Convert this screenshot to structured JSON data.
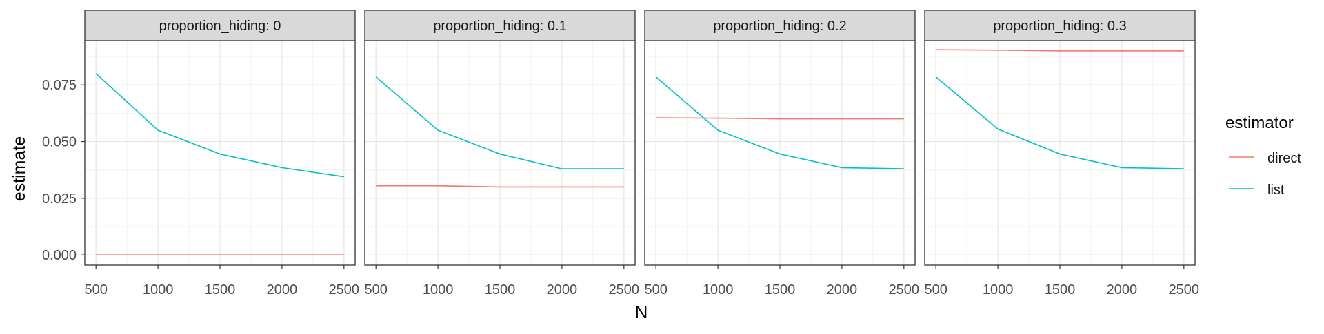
{
  "chart_data": {
    "type": "line",
    "xlabel": "N",
    "ylabel": "estimate",
    "x": [
      500,
      1000,
      1500,
      2000,
      2500
    ],
    "xticks": [
      "500",
      "1000",
      "1500",
      "2000",
      "2500"
    ],
    "xlim": [
      410,
      2590
    ],
    "yticks": [
      "0.000",
      "0.025",
      "0.050",
      "0.075"
    ],
    "ytick_values": [
      0.0,
      0.025,
      0.05,
      0.075
    ],
    "ylim": [
      -0.0045,
      0.0945
    ],
    "grid": true,
    "legend": {
      "title": "estimator",
      "position": "right",
      "entries": [
        {
          "name": "direct",
          "color": "#F8766D"
        },
        {
          "name": "list",
          "color": "#00BFC4"
        }
      ]
    },
    "facets": [
      {
        "label": "proportion_hiding: 0",
        "series": [
          {
            "name": "direct",
            "values": [
              0.0,
              0.0,
              0.0,
              0.0,
              0.0
            ]
          },
          {
            "name": "list",
            "values": [
              0.08,
              0.055,
              0.0445,
              0.0385,
              0.0345
            ]
          }
        ]
      },
      {
        "label": "proportion_hiding: 0.1",
        "series": [
          {
            "name": "direct",
            "values": [
              0.0305,
              0.0305,
              0.03,
              0.03,
              0.03
            ]
          },
          {
            "name": "list",
            "values": [
              0.0785,
              0.055,
              0.0445,
              0.038,
              0.038
            ]
          }
        ]
      },
      {
        "label": "proportion_hiding: 0.2",
        "series": [
          {
            "name": "direct",
            "values": [
              0.0605,
              0.0603,
              0.06,
              0.06,
              0.06
            ]
          },
          {
            "name": "list",
            "values": [
              0.0785,
              0.055,
              0.0445,
              0.0385,
              0.038
            ]
          }
        ]
      },
      {
        "label": "proportion_hiding: 0.3",
        "series": [
          {
            "name": "direct",
            "values": [
              0.0905,
              0.0903,
              0.09,
              0.09,
              0.09
            ]
          },
          {
            "name": "list",
            "values": [
              0.0785,
              0.0555,
              0.0445,
              0.0385,
              0.038
            ]
          }
        ]
      }
    ]
  }
}
